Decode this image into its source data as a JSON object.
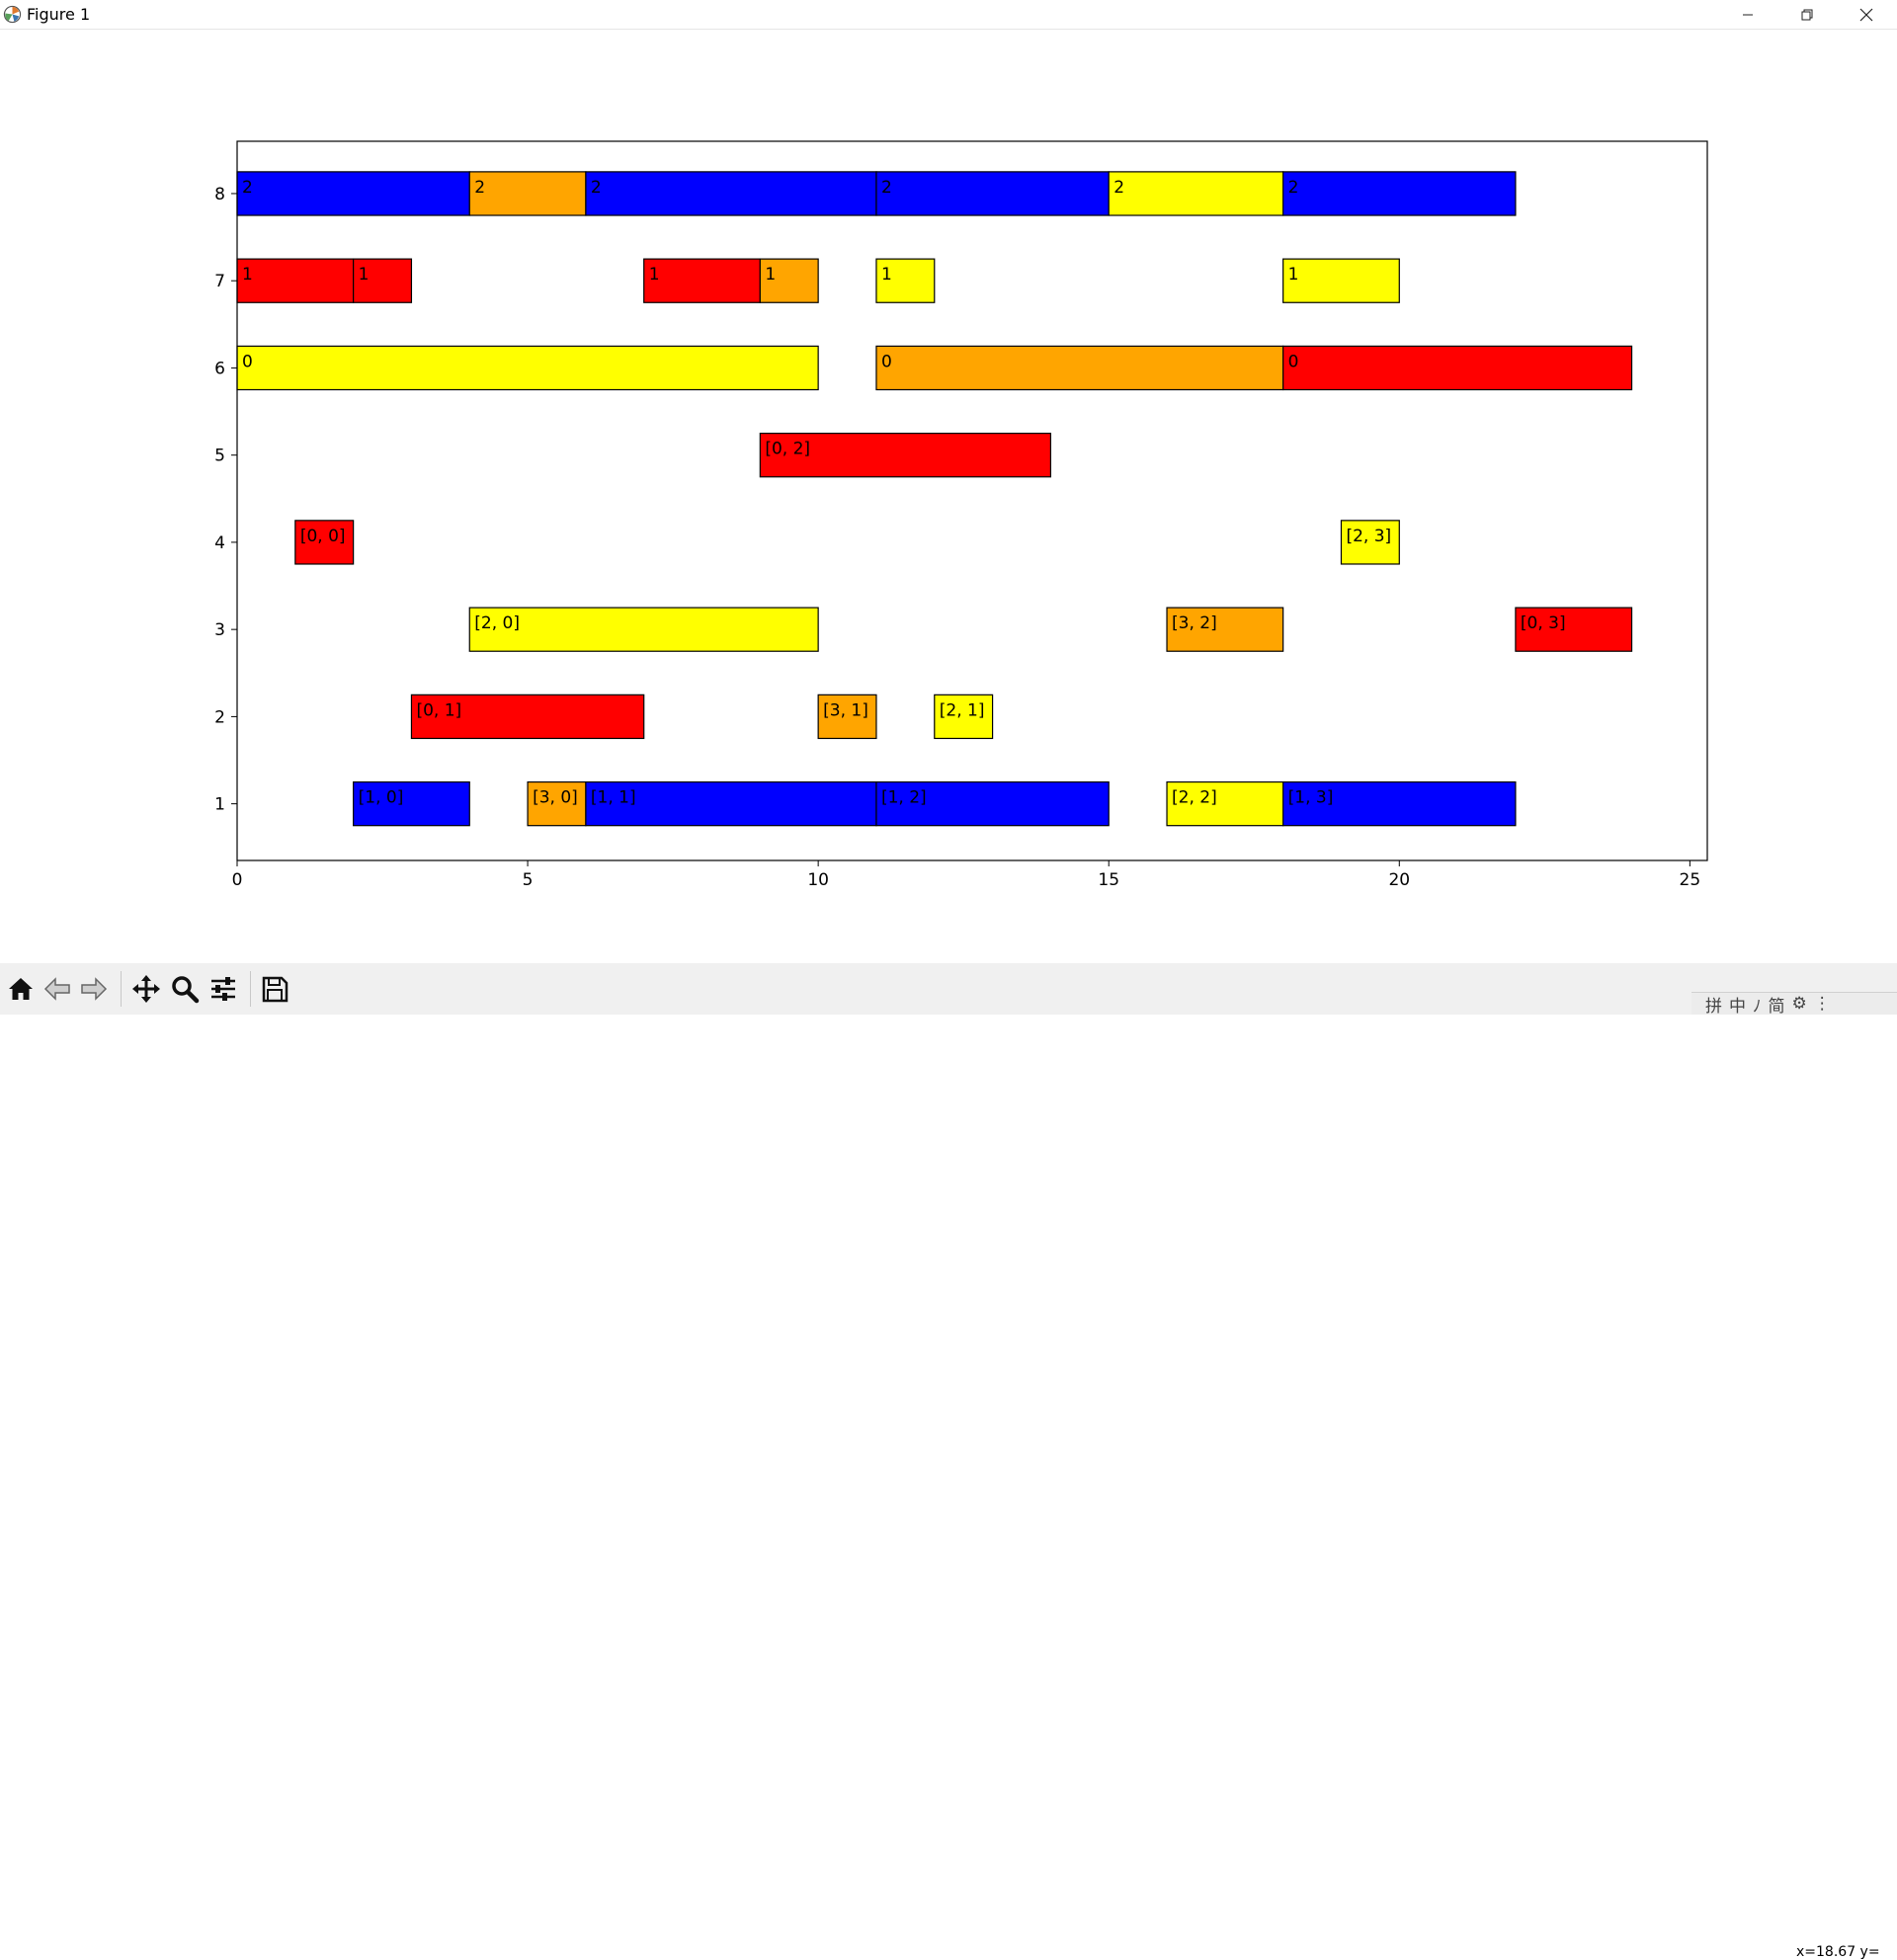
{
  "window": {
    "title": "Figure 1"
  },
  "toolbar": {
    "buttons": [
      {
        "name": "home-button",
        "icon": "home-icon"
      },
      {
        "name": "back-button",
        "icon": "arrow-left-icon"
      },
      {
        "name": "forward-button",
        "icon": "arrow-right-icon"
      },
      {
        "name": "pan-button",
        "icon": "move-icon"
      },
      {
        "name": "zoom-button",
        "icon": "magnifier-icon"
      },
      {
        "name": "configure-subplots-button",
        "icon": "sliders-icon"
      },
      {
        "name": "save-button",
        "icon": "floppy-disk-icon"
      }
    ],
    "coords": "x=18.67 y="
  },
  "ime": {
    "items": [
      "拼",
      "中",
      "ﾉ",
      "简",
      "⚙",
      "⋮"
    ]
  },
  "chart_data": {
    "type": "gantt",
    "xlim": [
      0,
      25.3
    ],
    "ylim": [
      0.35,
      8.6
    ],
    "xticks": [
      0,
      5,
      10,
      15,
      20,
      25
    ],
    "yticks": [
      1,
      2,
      3,
      4,
      5,
      6,
      7,
      8
    ],
    "grid": false,
    "bar_height": 0.5,
    "colors": {
      "red": "#ff0000",
      "blue": "#0000ff",
      "orange": "#ffa500",
      "yellow": "#ffff00"
    },
    "bars": [
      {
        "y": 8,
        "start": 0,
        "end": 4,
        "color": "#0000ff",
        "label": "2"
      },
      {
        "y": 8,
        "start": 4,
        "end": 6,
        "color": "#ffa500",
        "label": "2"
      },
      {
        "y": 8,
        "start": 6,
        "end": 11,
        "color": "#0000ff",
        "label": "2"
      },
      {
        "y": 8,
        "start": 11,
        "end": 15,
        "color": "#0000ff",
        "label": "2"
      },
      {
        "y": 8,
        "start": 15,
        "end": 18,
        "color": "#ffff00",
        "label": "2"
      },
      {
        "y": 8,
        "start": 18,
        "end": 22,
        "color": "#0000ff",
        "label": "2"
      },
      {
        "y": 7,
        "start": 0,
        "end": 2,
        "color": "#ff0000",
        "label": "1"
      },
      {
        "y": 7,
        "start": 2,
        "end": 3,
        "color": "#ff0000",
        "label": "1"
      },
      {
        "y": 7,
        "start": 7,
        "end": 9,
        "color": "#ff0000",
        "label": "1"
      },
      {
        "y": 7,
        "start": 9,
        "end": 10,
        "color": "#ffa500",
        "label": "1"
      },
      {
        "y": 7,
        "start": 11,
        "end": 12,
        "color": "#ffff00",
        "label": "1"
      },
      {
        "y": 7,
        "start": 18,
        "end": 20,
        "color": "#ffff00",
        "label": "1"
      },
      {
        "y": 6,
        "start": 0,
        "end": 10,
        "color": "#ffff00",
        "label": "0"
      },
      {
        "y": 6,
        "start": 11,
        "end": 18,
        "color": "#ffa500",
        "label": "0"
      },
      {
        "y": 6,
        "start": 18,
        "end": 24,
        "color": "#ff0000",
        "label": "0"
      },
      {
        "y": 5,
        "start": 9,
        "end": 14,
        "color": "#ff0000",
        "label": "[0, 2]"
      },
      {
        "y": 4,
        "start": 1,
        "end": 2,
        "color": "#ff0000",
        "label": "[0, 0]"
      },
      {
        "y": 4,
        "start": 19,
        "end": 20,
        "color": "#ffff00",
        "label": "[2, 3]"
      },
      {
        "y": 3,
        "start": 4,
        "end": 10,
        "color": "#ffff00",
        "label": "[2, 0]"
      },
      {
        "y": 3,
        "start": 16,
        "end": 18,
        "color": "#ffa500",
        "label": "[3, 2]"
      },
      {
        "y": 3,
        "start": 22,
        "end": 24,
        "color": "#ff0000",
        "label": "[0, 3]"
      },
      {
        "y": 2,
        "start": 3,
        "end": 7,
        "color": "#ff0000",
        "label": "[0, 1]"
      },
      {
        "y": 2,
        "start": 10,
        "end": 11,
        "color": "#ffa500",
        "label": "[3, 1]"
      },
      {
        "y": 2,
        "start": 12,
        "end": 13,
        "color": "#ffff00",
        "label": "[2, 1]"
      },
      {
        "y": 1,
        "start": 2,
        "end": 4,
        "color": "#0000ff",
        "label": "[1, 0]"
      },
      {
        "y": 1,
        "start": 5,
        "end": 6,
        "color": "#ffa500",
        "label": "[3, 0]"
      },
      {
        "y": 1,
        "start": 6,
        "end": 11,
        "color": "#0000ff",
        "label": "[1, 1]"
      },
      {
        "y": 1,
        "start": 11,
        "end": 15,
        "color": "#0000ff",
        "label": "[1, 2]"
      },
      {
        "y": 1,
        "start": 16,
        "end": 18,
        "color": "#ffff00",
        "label": "[2, 2]"
      },
      {
        "y": 1,
        "start": 18,
        "end": 22,
        "color": "#0000ff",
        "label": "[1, 3]"
      }
    ]
  }
}
